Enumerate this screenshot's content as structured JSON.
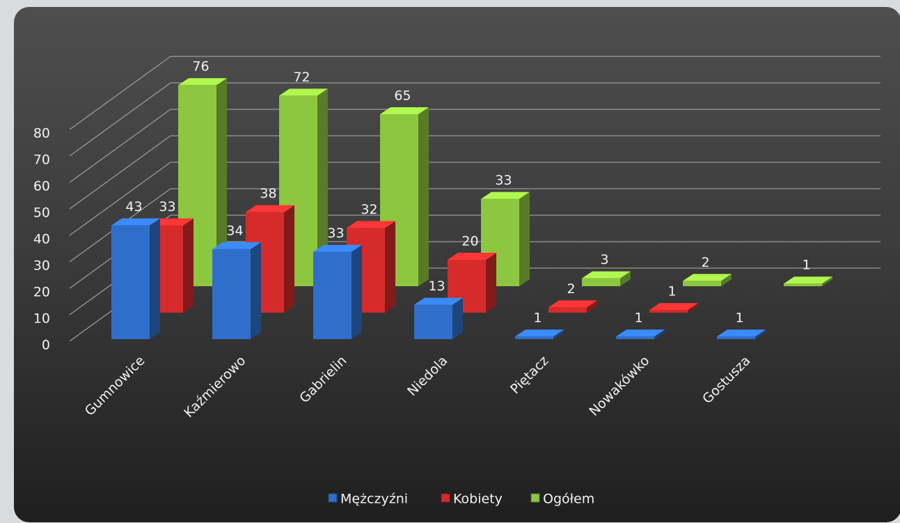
{
  "chart_data": {
    "type": "bar3d",
    "categories": [
      "Gumnowice",
      "Kaźmierowo",
      "Gabrielin",
      "Niedola",
      "Piętacz",
      "Nowakówko",
      "Gostusza"
    ],
    "series": [
      {
        "name": "Mężczyźni",
        "color": "#2f6fcb",
        "values": [
          43,
          34,
          33,
          13,
          1,
          1,
          1
        ]
      },
      {
        "name": "Kobiety",
        "color": "#d52b2b",
        "values": [
          33,
          38,
          32,
          20,
          2,
          1,
          null
        ]
      },
      {
        "name": "Ogółem",
        "color": "#8dc63f",
        "values": [
          76,
          72,
          65,
          33,
          3,
          2,
          1
        ]
      }
    ],
    "ylim": [
      0,
      80
    ],
    "yticks": [
      0,
      10,
      20,
      30,
      40,
      50,
      60,
      70,
      80
    ],
    "grid": true,
    "legend": "bottom"
  }
}
